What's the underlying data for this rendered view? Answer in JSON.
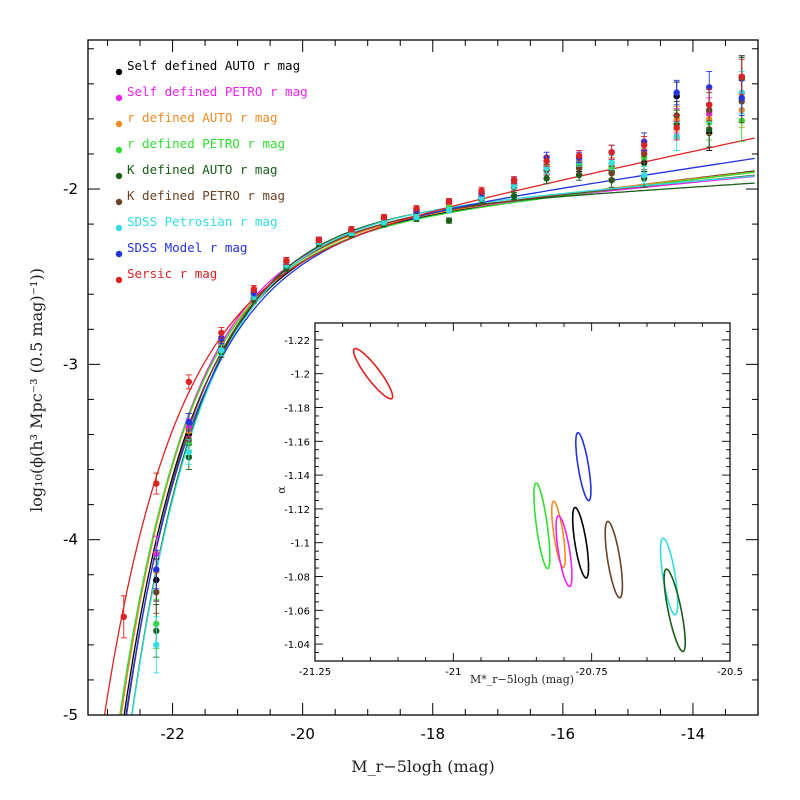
{
  "chart_data": [
    {
      "type": "scatter",
      "xlabel": "M_r−5logh (mag)",
      "ylabel": "log₁₀(ϕ(h³ Mpc⁻³ (0.5 mag)⁻¹))",
      "xlim": [
        -23.3,
        -13
      ],
      "ylim": [
        -5,
        -1.15
      ],
      "x_ticks": [
        -22,
        -20,
        -18,
        -16,
        -14
      ],
      "y_ticks": [
        -2,
        -3,
        -4,
        -5
      ],
      "grid": false,
      "legend_position": "top-left",
      "series": [
        {
          "name": "Self defined AUTO r mag",
          "color": "#000000",
          "x": [
            -22.25,
            -21.75,
            -21.25,
            -20.75,
            -20.25,
            -19.75,
            -19.25,
            -18.75,
            -18.25,
            -17.75,
            -17.25,
            -16.75,
            -16.25,
            -15.75,
            -15.25,
            -14.75,
            -14.25,
            -13.75,
            -13.25
          ],
          "y": [
            -4.23,
            -3.4,
            -2.88,
            -2.6,
            -2.42,
            -2.3,
            -2.24,
            -2.2,
            -2.13,
            -2.08,
            -2.03,
            -1.97,
            -1.89,
            -1.87,
            -1.9,
            -1.85,
            -1.47,
            -1.68,
            -1.36
          ],
          "yerr": [
            0.12,
            0.06,
            0.03,
            0.02,
            0.02,
            0.015,
            0.015,
            0.015,
            0.015,
            0.015,
            0.02,
            0.02,
            0.03,
            0.03,
            0.04,
            0.05,
            0.08,
            0.1,
            0.12
          ]
        },
        {
          "name": "Self defined PETRO r mag",
          "color": "#ee22ee",
          "x": [
            -22.25,
            -21.75,
            -21.25,
            -20.75,
            -20.25,
            -19.75,
            -19.25,
            -18.75,
            -18.25,
            -17.75,
            -17.25,
            -16.75,
            -16.25,
            -15.75,
            -15.25,
            -14.75,
            -14.25,
            -13.75,
            -13.25
          ],
          "y": [
            -4.08,
            -3.36,
            -2.87,
            -2.6,
            -2.42,
            -2.29,
            -2.24,
            -2.17,
            -2.12,
            -2.09,
            -2.03,
            -1.96,
            -1.87,
            -1.83,
            -1.87,
            -1.78,
            -1.61,
            -1.57,
            -1.45
          ],
          "yerr": [
            0.1,
            0.05,
            0.03,
            0.02,
            0.02,
            0.015,
            0.015,
            0.015,
            0.015,
            0.015,
            0.02,
            0.02,
            0.03,
            0.03,
            0.04,
            0.05,
            0.07,
            0.09,
            0.1
          ]
        },
        {
          "name": "r defined AUTO r mag",
          "color": "#f08b22",
          "x": [
            -22.25,
            -21.75,
            -21.25,
            -20.75,
            -20.25,
            -19.75,
            -19.25,
            -18.75,
            -18.25,
            -17.75,
            -17.25,
            -16.75,
            -16.25,
            -15.75,
            -15.25,
            -14.75,
            -14.25,
            -13.75,
            -13.25
          ],
          "y": [
            -4.18,
            -3.38,
            -2.88,
            -2.61,
            -2.42,
            -2.3,
            -2.25,
            -2.18,
            -2.14,
            -2.1,
            -2.04,
            -1.98,
            -1.87,
            -1.85,
            -1.86,
            -1.8,
            -1.6,
            -1.6,
            -1.55
          ],
          "yerr": [
            0.11,
            0.06,
            0.03,
            0.02,
            0.02,
            0.015,
            0.015,
            0.015,
            0.015,
            0.015,
            0.02,
            0.02,
            0.03,
            0.03,
            0.04,
            0.05,
            0.07,
            0.09,
            0.1
          ]
        },
        {
          "name": "r defined PETRO r mag",
          "color": "#33dd33",
          "x": [
            -22.25,
            -21.75,
            -21.25,
            -20.75,
            -20.25,
            -19.75,
            -19.25,
            -18.75,
            -18.25,
            -17.75,
            -17.25,
            -16.75,
            -16.25,
            -15.75,
            -15.25,
            -14.75,
            -14.25,
            -13.75,
            -13.25
          ],
          "y": [
            -4.48,
            -3.45,
            -2.91,
            -2.62,
            -2.44,
            -2.31,
            -2.25,
            -2.19,
            -2.15,
            -2.11,
            -2.05,
            -1.98,
            -1.88,
            -1.86,
            -1.88,
            -1.82,
            -1.58,
            -1.62,
            -1.61
          ],
          "yerr": [
            0.14,
            0.07,
            0.03,
            0.02,
            0.02,
            0.015,
            0.015,
            0.015,
            0.015,
            0.015,
            0.02,
            0.02,
            0.03,
            0.03,
            0.04,
            0.05,
            0.08,
            0.1,
            0.12
          ]
        },
        {
          "name": "K defined AUTO r mag",
          "color": "#1a5e1a",
          "x": [
            -22.25,
            -21.75,
            -21.25,
            -20.75,
            -20.25,
            -19.75,
            -19.25,
            -18.75,
            -18.25,
            -17.75,
            -17.25,
            -16.75,
            -16.25,
            -15.75,
            -15.25,
            -14.75,
            -14.25,
            -13.75,
            -13.25
          ],
          "y": [
            -4.52,
            -3.53,
            -2.93,
            -2.63,
            -2.45,
            -2.31,
            -2.26,
            -2.2,
            -2.17,
            -2.18,
            -2.06,
            -2.04,
            -1.94,
            -1.92,
            -1.95,
            -1.94,
            -1.63,
            -1.66,
            -1.37
          ],
          "yerr": [
            0.15,
            0.07,
            0.03,
            0.02,
            0.02,
            0.015,
            0.015,
            0.015,
            0.015,
            0.015,
            0.02,
            0.02,
            0.03,
            0.03,
            0.04,
            0.05,
            0.08,
            0.1,
            0.12
          ]
        },
        {
          "name": "K defined PETRO r mag",
          "color": "#6b4226",
          "x": [
            -22.25,
            -21.75,
            -21.25,
            -20.75,
            -20.25,
            -19.75,
            -19.25,
            -18.75,
            -18.25,
            -17.75,
            -17.25,
            -16.75,
            -16.25,
            -15.75,
            -15.25,
            -14.75,
            -14.25,
            -13.75,
            -13.25
          ],
          "y": [
            -4.3,
            -3.43,
            -2.9,
            -2.62,
            -2.43,
            -2.3,
            -2.25,
            -2.19,
            -2.15,
            -2.12,
            -2.05,
            -1.99,
            -1.89,
            -1.88,
            -1.91,
            -1.8,
            -1.58,
            -1.55,
            -1.5
          ],
          "yerr": [
            0.12,
            0.06,
            0.03,
            0.02,
            0.02,
            0.015,
            0.015,
            0.015,
            0.015,
            0.015,
            0.02,
            0.02,
            0.03,
            0.03,
            0.04,
            0.05,
            0.08,
            0.1,
            0.12
          ]
        },
        {
          "name": "SDSS Petrosian r mag",
          "color": "#33dddd",
          "x": [
            -22.25,
            -21.75,
            -21.25,
            -20.75,
            -20.25,
            -19.75,
            -19.25,
            -18.75,
            -18.25,
            -17.75,
            -17.25,
            -16.75,
            -16.25,
            -15.75,
            -15.25,
            -14.75,
            -14.25,
            -13.75,
            -13.25
          ],
          "y": [
            -4.6,
            -3.5,
            -2.92,
            -2.61,
            -2.43,
            -2.3,
            -2.25,
            -2.19,
            -2.16,
            -2.12,
            -2.05,
            -1.98,
            -1.88,
            -1.84,
            -1.85,
            -1.92,
            -1.7,
            -1.52,
            -1.45
          ],
          "yerr": [
            0.16,
            0.07,
            0.03,
            0.02,
            0.02,
            0.015,
            0.015,
            0.015,
            0.015,
            0.015,
            0.02,
            0.02,
            0.03,
            0.03,
            0.04,
            0.05,
            0.08,
            0.1,
            0.12
          ]
        },
        {
          "name": "SDSS Model r mag",
          "color": "#2233dd",
          "x": [
            -22.25,
            -21.75,
            -21.25,
            -20.75,
            -20.25,
            -19.75,
            -19.25,
            -18.75,
            -18.25,
            -17.75,
            -17.25,
            -16.75,
            -16.25,
            -15.75,
            -15.25,
            -14.75,
            -14.25,
            -13.75,
            -13.25
          ],
          "y": [
            -4.17,
            -3.33,
            -2.85,
            -2.59,
            -2.41,
            -2.29,
            -2.23,
            -2.16,
            -2.12,
            -2.07,
            -2.02,
            -1.95,
            -1.82,
            -1.82,
            -1.79,
            -1.73,
            -1.45,
            -1.42,
            -1.48
          ],
          "yerr": [
            0.11,
            0.05,
            0.03,
            0.02,
            0.02,
            0.015,
            0.015,
            0.015,
            0.015,
            0.015,
            0.02,
            0.02,
            0.03,
            0.03,
            0.04,
            0.05,
            0.07,
            0.09,
            0.1
          ]
        },
        {
          "name": "Sersic r mag",
          "color": "#dd2222",
          "x": [
            -22.75,
            -22.25,
            -21.75,
            -21.25,
            -20.75,
            -20.25,
            -19.75,
            -19.25,
            -18.75,
            -18.25,
            -17.75,
            -17.25,
            -16.75,
            -16.25,
            -15.75,
            -15.25,
            -14.75,
            -14.25,
            -13.75,
            -13.25
          ],
          "y": [
            -4.44,
            -3.68,
            -3.1,
            -2.82,
            -2.57,
            -2.41,
            -2.29,
            -2.23,
            -2.16,
            -2.11,
            -2.07,
            -2.01,
            -1.95,
            -1.84,
            -1.81,
            -1.79,
            -1.75,
            -1.65,
            -1.52,
            -1.36
          ],
          "yerr": [
            0.12,
            0.06,
            0.04,
            0.03,
            0.02,
            0.02,
            0.015,
            0.015,
            0.015,
            0.015,
            0.015,
            0.02,
            0.02,
            0.03,
            0.03,
            0.04,
            0.05,
            0.07,
            0.09,
            0.1
          ]
        }
      ],
      "fits": [
        {
          "name": "Self defined AUTO r mag",
          "color": "#000000",
          "mstar": -20.77,
          "alpha": -1.11,
          "logphistar": -1.9
        },
        {
          "name": "Self defined PETRO r mag",
          "color": "#ee22ee",
          "mstar": -20.8,
          "alpha": -1.09,
          "logphistar": -1.87
        },
        {
          "name": "r defined AUTO r mag",
          "color": "#f08b22",
          "mstar": -20.81,
          "alpha": -1.105,
          "logphistar": -1.89
        },
        {
          "name": "r defined PETRO r mag",
          "color": "#33dd33",
          "mstar": -20.84,
          "alpha": -1.11,
          "logphistar": -1.91
        },
        {
          "name": "K defined AUTO r mag",
          "color": "#1a5e1a",
          "mstar": -20.6,
          "alpha": -1.06,
          "logphistar": -1.81
        },
        {
          "name": "K defined PETRO r mag",
          "color": "#6b4226",
          "mstar": -20.71,
          "alpha": -1.09,
          "logphistar": -1.86
        },
        {
          "name": "SDSS Petrosian r mag",
          "color": "#33dddd",
          "mstar": -20.61,
          "alpha": -1.08,
          "logphistar": -1.83
        },
        {
          "name": "SDSS Model r mag",
          "color": "#2233dd",
          "mstar": -20.76,
          "alpha": -1.14,
          "logphistar": -1.92
        },
        {
          "name": "Sersic r mag",
          "color": "#dd2222",
          "mstar": -21.15,
          "alpha": -1.2,
          "logphistar": -2.02
        }
      ]
    },
    {
      "type": "contour",
      "xlabel": "M*_r−5logh (mag)",
      "ylabel": "α",
      "xlim": [
        -21.25,
        -20.5
      ],
      "ylim": [
        -1.03,
        -1.23
      ],
      "x_ticks": [
        -21.25,
        -21,
        -20.75,
        -20.5
      ],
      "x_tick_labels": [
        "-21.25",
        "-21",
        "-20.75",
        "-20.5"
      ],
      "y_ticks": [
        -1.04,
        -1.06,
        -1.08,
        -1.1,
        -1.12,
        -1.14,
        -1.16,
        -1.18,
        -1.2,
        -1.22
      ],
      "y_tick_labels": [
        "-1.04",
        "-1.06",
        "-1.08",
        "-1.1",
        "-1.12",
        "-1.14",
        "-1.16",
        "-1.18",
        "-1.2",
        "-1.22"
      ],
      "ellipses": [
        {
          "name": "Sersic r mag",
          "color": "#dd2222",
          "center_mstar": -21.145,
          "center_alpha": -1.2,
          "a": 0.1,
          "b": 0.015,
          "angle": -0.35
        },
        {
          "name": "SDSS Model r mag",
          "color": "#2233dd",
          "center_mstar": -20.765,
          "center_alpha": -1.145,
          "a": 0.058,
          "b": 0.022,
          "angle": -1.0
        },
        {
          "name": "r defined PETRO r mag",
          "color": "#33dd33",
          "center_mstar": -20.84,
          "center_alpha": -1.11,
          "a": 0.07,
          "b": 0.024,
          "angle": -1.1
        },
        {
          "name": "r defined AUTO r mag",
          "color": "#f08b22",
          "center_mstar": -20.81,
          "center_alpha": -1.105,
          "a": 0.055,
          "b": 0.02,
          "angle": -1.05
        },
        {
          "name": "Self defined PETRO r mag",
          "color": "#ee22ee",
          "center_mstar": -20.8,
          "center_alpha": -1.095,
          "a": 0.06,
          "b": 0.024,
          "angle": -1.0
        },
        {
          "name": "Self defined AUTO r mag",
          "color": "#000000",
          "center_mstar": -20.77,
          "center_alpha": -1.1,
          "a": 0.06,
          "b": 0.024,
          "angle": -1.0
        },
        {
          "name": "K defined PETRO r mag",
          "color": "#6b4226",
          "center_mstar": -20.71,
          "center_alpha": -1.09,
          "a": 0.065,
          "b": 0.026,
          "angle": -1.0
        },
        {
          "name": "SDSS Petrosian r mag",
          "color": "#33dddd",
          "center_mstar": -20.61,
          "center_alpha": -1.08,
          "a": 0.065,
          "b": 0.026,
          "angle": -1.0
        },
        {
          "name": "K defined AUTO r mag",
          "color": "#1a5e1a",
          "center_mstar": -20.6,
          "center_alpha": -1.06,
          "a": 0.075,
          "b": 0.026,
          "angle": -0.9
        }
      ]
    }
  ]
}
